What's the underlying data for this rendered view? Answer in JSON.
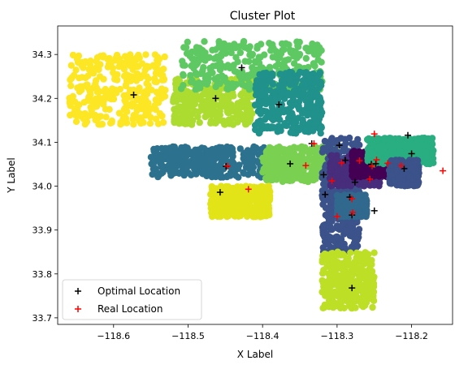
{
  "chart_data": {
    "type": "scatter",
    "title": "Cluster Plot",
    "xlabel": "X Label",
    "ylabel": "Y Label",
    "xlim": [
      -118.675,
      -118.145
    ],
    "ylim": [
      33.685,
      34.365
    ],
    "xticks": [
      -118.6,
      -118.5,
      -118.4,
      -118.3,
      -118.2
    ],
    "xtick_labels": [
      "−118.6",
      "−118.5",
      "−118.4",
      "−118.3",
      "−118.2"
    ],
    "yticks": [
      33.7,
      33.8,
      33.9,
      34.0,
      34.1,
      34.2,
      34.3
    ],
    "ytick_labels": [
      "33.7",
      "33.8",
      "33.9",
      "34.0",
      "34.1",
      "34.2",
      "34.3"
    ],
    "grid": false,
    "legend_position": "lower-left",
    "clusters": [
      {
        "color": "#fde725",
        "x": [
          -118.66,
          -118.53
        ],
        "y": [
          34.14,
          34.3
        ]
      },
      {
        "color": "#addc30",
        "x": [
          -118.52,
          -118.41
        ],
        "y": [
          34.14,
          34.25
        ]
      },
      {
        "color": "#5ec962",
        "x": [
          -118.51,
          -118.32
        ],
        "y": [
          34.22,
          34.33
        ]
      },
      {
        "color": "#21918c",
        "x": [
          -118.41,
          -118.32
        ],
        "y": [
          34.12,
          34.26
        ]
      },
      {
        "color": "#2c728e",
        "x": [
          -118.55,
          -118.39
        ],
        "y": [
          34.02,
          34.09
        ]
      },
      {
        "color": "#7ad151",
        "x": [
          -118.4,
          -118.3
        ],
        "y": [
          34.01,
          34.09
        ]
      },
      {
        "color": "#3b528b",
        "x": [
          -118.32,
          -118.27
        ],
        "y": [
          33.85,
          34.11
        ]
      },
      {
        "color": "#472d7b",
        "x": [
          -118.31,
          -118.24
        ],
        "y": [
          34.0,
          34.07
        ]
      },
      {
        "color": "#440154",
        "x": [
          -118.28,
          -118.22
        ],
        "y": [
          34.02,
          34.08
        ]
      },
      {
        "color": "#28ae80",
        "x": [
          -118.26,
          -118.17
        ],
        "y": [
          34.05,
          34.11
        ]
      },
      {
        "color": "#3b528b",
        "x": [
          -118.23,
          -118.19
        ],
        "y": [
          34.0,
          34.06
        ]
      },
      {
        "color": "#bddf26",
        "x": [
          -118.32,
          -118.25
        ],
        "y": [
          33.72,
          33.85
        ]
      },
      {
        "color": "#e2e418",
        "x": [
          -118.47,
          -118.39
        ],
        "y": [
          33.93,
          34.0
        ]
      },
      {
        "color": "#31688e",
        "x": [
          -118.3,
          -118.26
        ],
        "y": [
          33.93,
          33.98
        ]
      }
    ],
    "series": [
      {
        "name": "Optimal Location",
        "color": "#000000",
        "marker": "+",
        "points": [
          [
            -118.573,
            34.208
          ],
          [
            -118.463,
            34.2
          ],
          [
            -118.428,
            34.27
          ],
          [
            -118.378,
            34.186
          ],
          [
            -118.334,
            34.097
          ],
          [
            -118.297,
            34.093
          ],
          [
            -118.205,
            34.116
          ],
          [
            -118.2,
            34.074
          ],
          [
            -118.21,
            34.04
          ],
          [
            -118.363,
            34.051
          ],
          [
            -118.449,
            34.045
          ],
          [
            -118.318,
            34.026
          ],
          [
            -118.289,
            34.059
          ],
          [
            -118.276,
            34.009
          ],
          [
            -118.254,
            34.05
          ],
          [
            -118.248,
            34.051
          ],
          [
            -118.457,
            33.986
          ],
          [
            -118.316,
            33.981
          ],
          [
            -118.283,
            33.975
          ],
          [
            -118.28,
            33.934
          ],
          [
            -118.25,
            33.944
          ],
          [
            -118.28,
            33.768
          ]
        ]
      },
      {
        "name": "Real Location",
        "color": "#ff0000",
        "marker": "+",
        "points": [
          [
            -118.25,
            34.119
          ],
          [
            -118.331,
            34.097
          ],
          [
            -118.447,
            34.046
          ],
          [
            -118.342,
            34.047
          ],
          [
            -118.294,
            34.053
          ],
          [
            -118.27,
            34.058
          ],
          [
            -118.247,
            34.06
          ],
          [
            -118.253,
            34.046
          ],
          [
            -118.232,
            34.052
          ],
          [
            -118.256,
            34.016
          ],
          [
            -118.214,
            34.047
          ],
          [
            -118.158,
            34.035
          ],
          [
            -118.307,
            34.012
          ],
          [
            -118.419,
            33.993
          ],
          [
            -118.3,
            33.931
          ],
          [
            -118.28,
            33.971
          ],
          [
            -118.279,
            33.94
          ]
        ]
      }
    ]
  }
}
